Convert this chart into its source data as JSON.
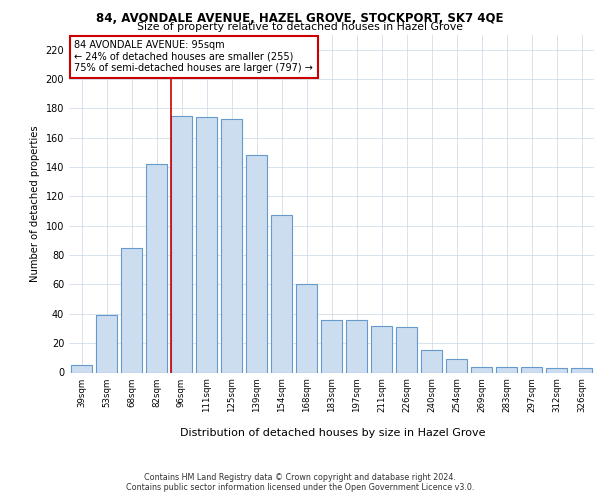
{
  "title1": "84, AVONDALE AVENUE, HAZEL GROVE, STOCKPORT, SK7 4QE",
  "title2": "Size of property relative to detached houses in Hazel Grove",
  "xlabel": "Distribution of detached houses by size in Hazel Grove",
  "ylabel": "Number of detached properties",
  "categories": [
    "39sqm",
    "53sqm",
    "68sqm",
    "82sqm",
    "96sqm",
    "111sqm",
    "125sqm",
    "139sqm",
    "154sqm",
    "168sqm",
    "183sqm",
    "197sqm",
    "211sqm",
    "226sqm",
    "240sqm",
    "254sqm",
    "269sqm",
    "283sqm",
    "297sqm",
    "312sqm",
    "326sqm"
  ],
  "values": [
    5,
    39,
    85,
    142,
    175,
    174,
    173,
    148,
    107,
    60,
    36,
    36,
    32,
    31,
    15,
    9,
    4,
    4,
    4,
    3,
    3
  ],
  "bar_color": "#ccddf0",
  "bar_edgecolor": "#6699cc",
  "bar_linewidth": 0.8,
  "grid_color": "#c8d8e8",
  "annotation_line1": "84 AVONDALE AVENUE: 95sqm",
  "annotation_line2": "← 24% of detached houses are smaller (255)",
  "annotation_line3": "75% of semi-detached houses are larger (797) →",
  "annotation_box_edgecolor": "#cc0000",
  "redline_x": 3.58,
  "footnote1": "Contains HM Land Registry data © Crown copyright and database right 2024.",
  "footnote2": "Contains public sector information licensed under the Open Government Licence v3.0.",
  "ylim": [
    0,
    230
  ],
  "yticks": [
    0,
    20,
    40,
    60,
    80,
    100,
    120,
    140,
    160,
    180,
    200,
    220
  ]
}
